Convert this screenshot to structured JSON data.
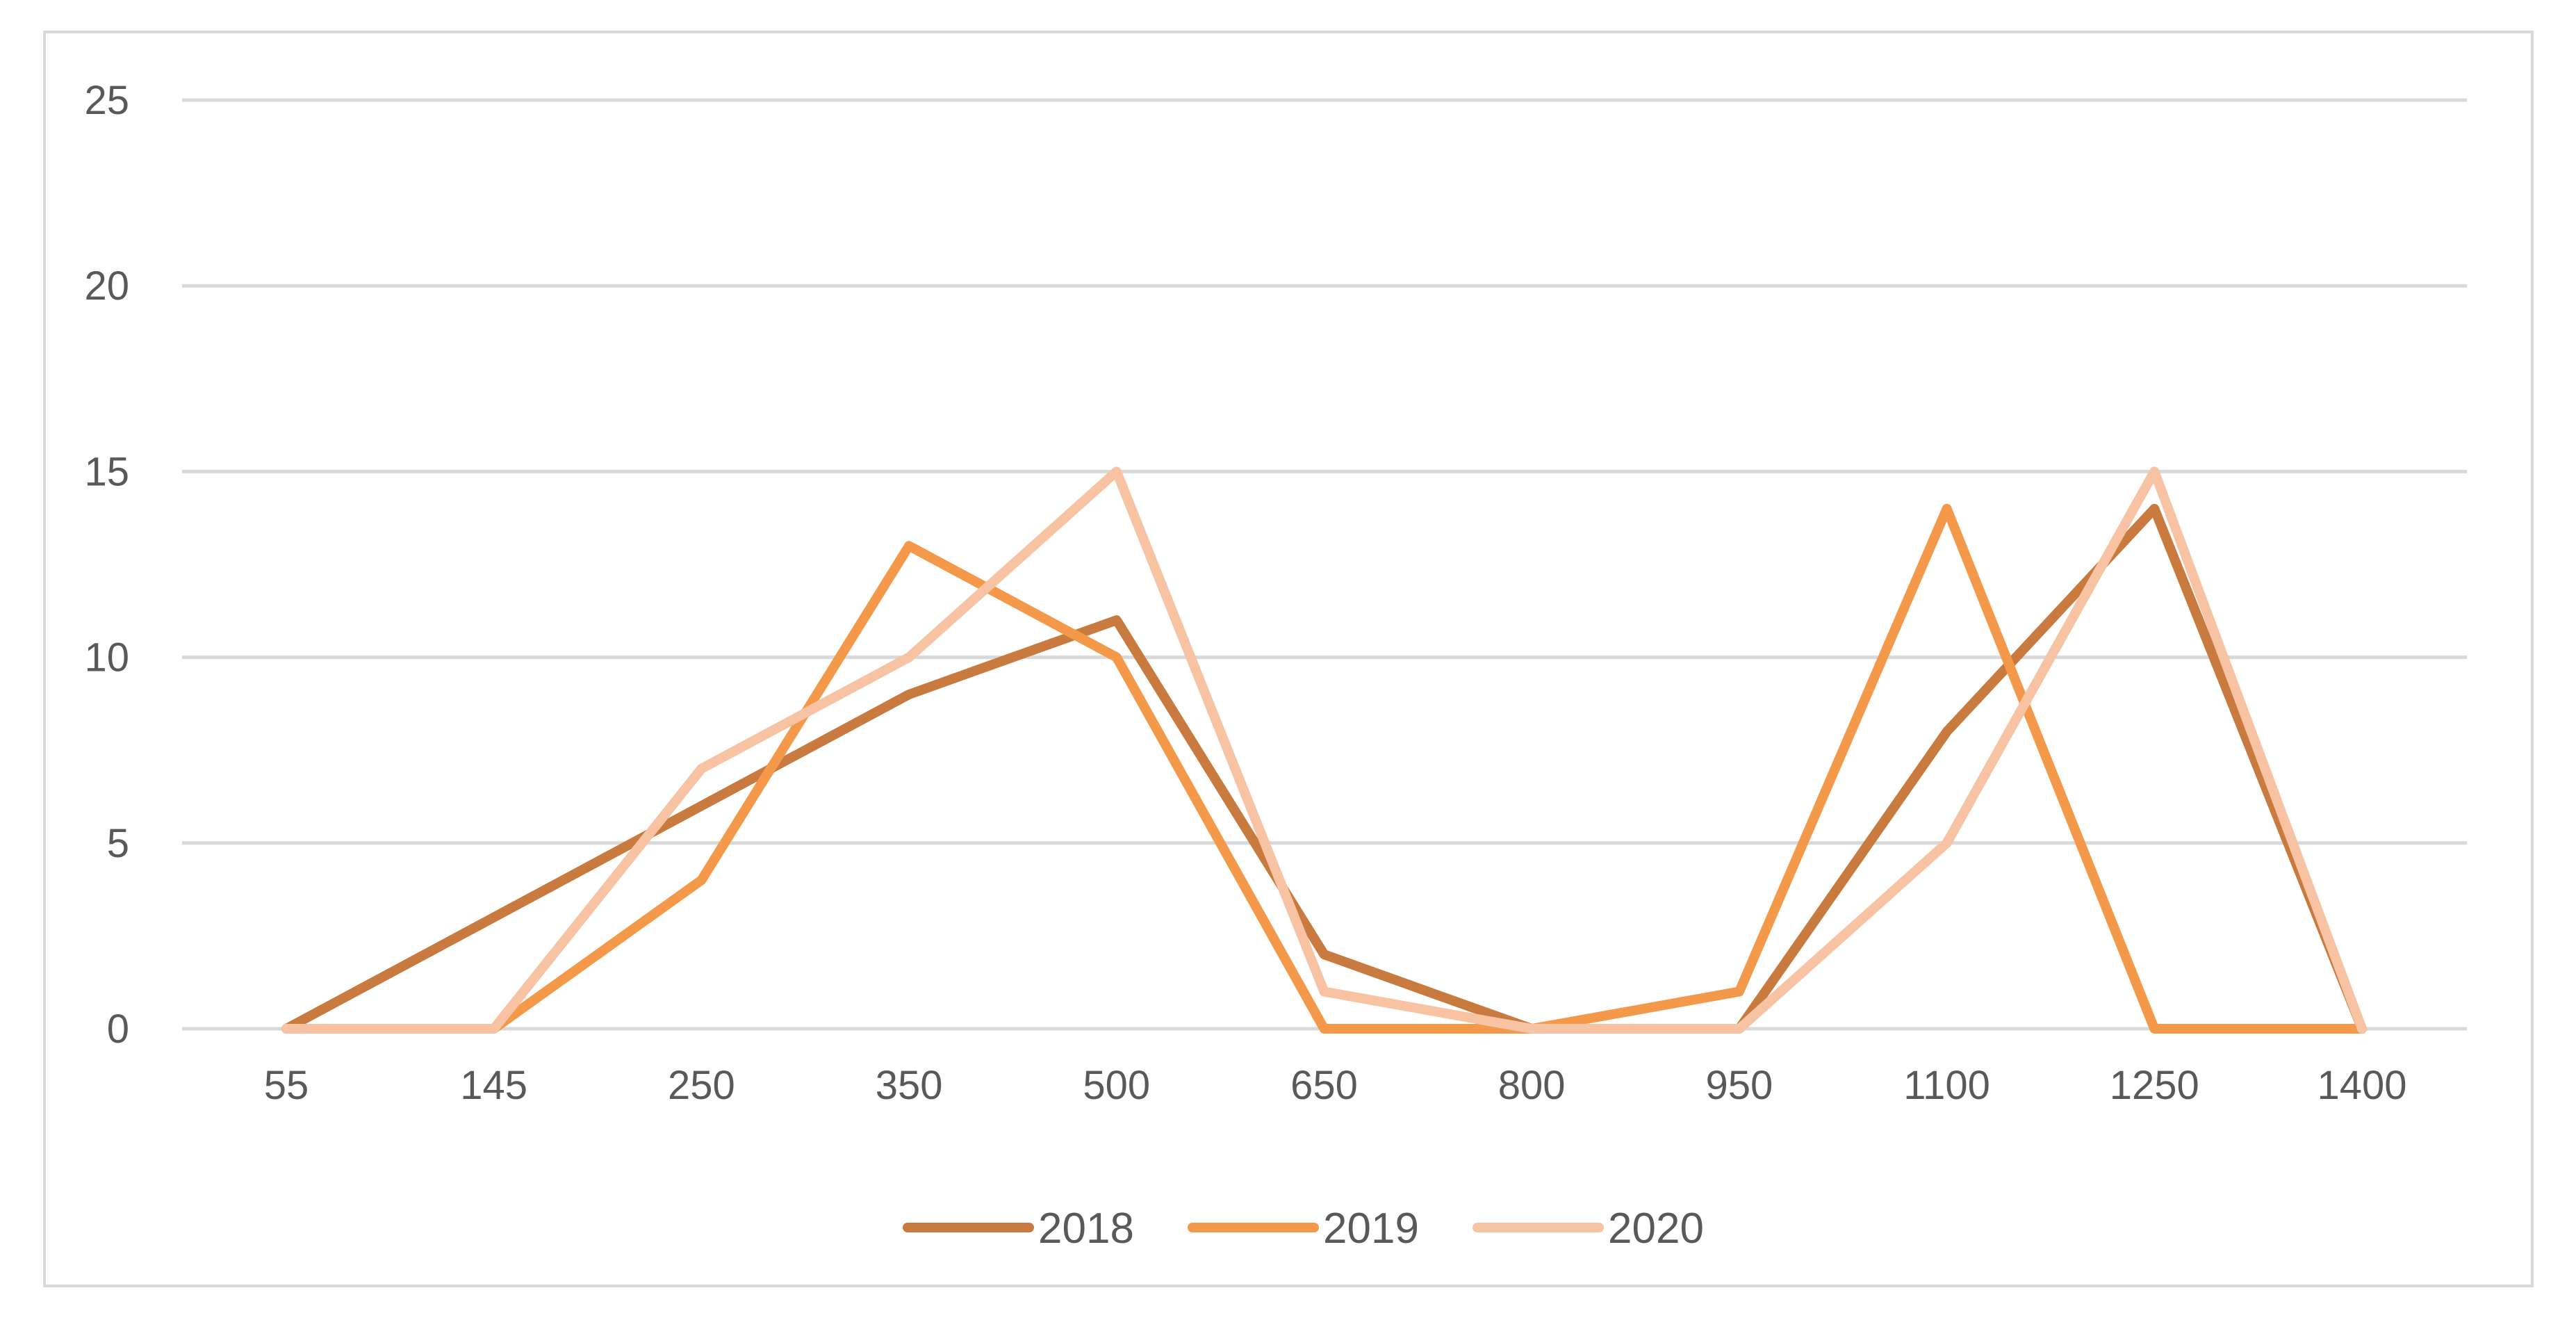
{
  "chart_data": {
    "type": "line",
    "categories": [
      "55",
      "145",
      "250",
      "350",
      "500",
      "650",
      "800",
      "950",
      "1100",
      "1250",
      "1400"
    ],
    "series": [
      {
        "name": "2018",
        "color": "#C97A3E",
        "values": [
          0,
          3,
          6,
          9,
          11,
          2,
          0,
          0,
          8,
          14,
          0
        ]
      },
      {
        "name": "2019",
        "color": "#F4994A",
        "values": [
          0,
          0,
          4,
          13,
          10,
          0,
          0,
          1,
          14,
          0,
          0
        ]
      },
      {
        "name": "2020",
        "color": "#F7C3A3",
        "values": [
          0,
          0,
          7,
          10,
          15,
          1,
          0,
          0,
          5,
          15,
          0
        ]
      }
    ],
    "y_ticks": [
      "0",
      "5",
      "10",
      "15",
      "20",
      "25"
    ],
    "ylim": [
      0,
      25
    ],
    "title": "",
    "xlabel": "",
    "ylabel": "",
    "grid": "horizontal",
    "legend": "bottom-center"
  }
}
